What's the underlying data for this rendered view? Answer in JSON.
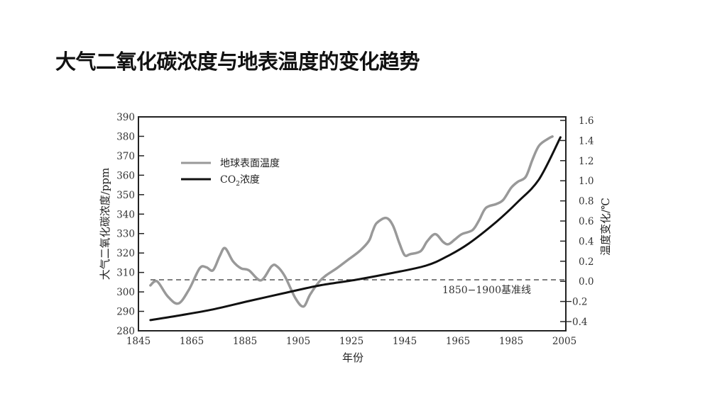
{
  "slide": {
    "title": "大气二氧化碳浓度与地表温度的变化趋势"
  },
  "chart_data": {
    "type": "line",
    "title": "大气二氧化碳浓度与地表温度的变化趋势",
    "xlabel": "年份",
    "ylabel_left": "大气二氧化碳浓度/ppm",
    "ylabel_right": "温度变化/℃",
    "xlim": [
      1845,
      2005
    ],
    "ylim_left": [
      280,
      390
    ],
    "ylim_right": [
      -0.4,
      1.6
    ],
    "x_ticks": [
      "1845",
      "1865",
      "1885",
      "1905",
      "1925",
      "1945",
      "1965",
      "1985",
      "2005"
    ],
    "y_left_ticks": [
      "390",
      "380",
      "370",
      "360",
      "350",
      "340",
      "330",
      "320",
      "310",
      "300",
      "290",
      "280"
    ],
    "y_right_ticks": [
      "1.6",
      "1.4",
      "1.2",
      "1.0",
      "0.8",
      "0.6",
      "0.4",
      "0.2",
      "0.0",
      "−0.2",
      "−0.4"
    ],
    "grid": false,
    "legend_position": "upper-left",
    "legend": [
      "地球表面温度",
      "CO₂浓度"
    ],
    "annotation": {
      "text": "1850−1900基准线",
      "baseline_temp": 0.0
    },
    "series": [
      {
        "name": "地球表面温度",
        "axis": "right",
        "color": "#999999",
        "x": [
          1849.5,
          1852,
          1856,
          1860,
          1864,
          1868,
          1870.5,
          1873,
          1875.5,
          1877.5,
          1880.5,
          1883.5,
          1886.5,
          1891,
          1895,
          1897,
          1900,
          1904,
          1907,
          1909.5,
          1913,
          1915.5,
          1919.5,
          1923.5,
          1928,
          1931.5,
          1933,
          1934.5,
          1938,
          1940.5,
          1943,
          1945,
          1947,
          1951,
          1953.5,
          1956.5,
          1959.5,
          1961.5,
          1964,
          1966.5,
          1970.5,
          1973,
          1975.5,
          1979.5,
          1982,
          1985,
          1987.5,
          1990.5,
          1993,
          1995.5,
          1999,
          2000.5
        ],
        "values": [
          -0.04,
          0.0,
          -0.15,
          -0.22,
          -0.08,
          0.13,
          0.14,
          0.11,
          0.25,
          0.33,
          0.2,
          0.13,
          0.11,
          0.01,
          0.15,
          0.15,
          0.05,
          -0.17,
          -0.25,
          -0.13,
          0.0,
          0.06,
          0.13,
          0.21,
          0.3,
          0.4,
          0.5,
          0.58,
          0.63,
          0.56,
          0.38,
          0.26,
          0.27,
          0.3,
          0.4,
          0.47,
          0.39,
          0.37,
          0.42,
          0.47,
          0.51,
          0.61,
          0.73,
          0.77,
          0.81,
          0.93,
          0.99,
          1.04,
          1.21,
          1.35,
          1.42,
          1.44
        ]
      },
      {
        "name": "CO₂浓度",
        "axis": "left",
        "color": "#111111",
        "x": [
          1849.5,
          1859.5,
          1873,
          1886.5,
          1899.5,
          1913,
          1926.5,
          1939.5,
          1953,
          1961,
          1969,
          1979.5,
          1987.5,
          1995.5,
          2003.5
        ],
        "values": [
          285.5,
          287.7,
          291,
          295.3,
          299.3,
          303.3,
          306.2,
          309.5,
          313.5,
          318.3,
          324.8,
          336.1,
          346.3,
          358,
          379.5
        ]
      }
    ]
  }
}
